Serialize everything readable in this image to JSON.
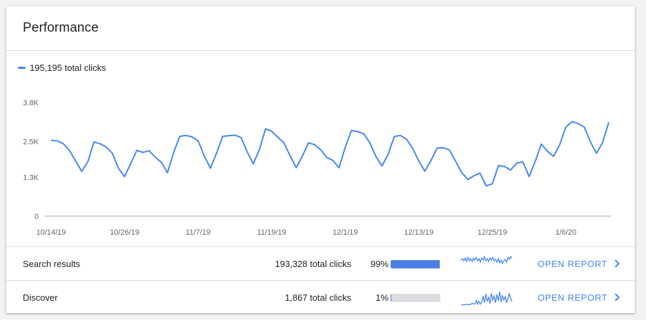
{
  "card": {
    "title": "Performance",
    "legend_label": "195,195 total clicks",
    "accent_color": "#4285f4"
  },
  "chart_data": {
    "type": "line",
    "title": "",
    "xlabel": "",
    "ylabel": "",
    "ylim": [
      0,
      3800
    ],
    "y_ticks": [
      "3.8K",
      "2.5K",
      "1.3K",
      "0"
    ],
    "y_tick_values": [
      3800,
      2500,
      1300,
      0
    ],
    "x_tick_labels": [
      "10/14/19",
      "10/26/19",
      "11/7/19",
      "11/19/19",
      "12/1/19",
      "12/13/19",
      "12/25/19",
      "1/6/20"
    ],
    "grid": "horizontal-light",
    "series": [
      {
        "name": "total clicks",
        "color": "#4285f4",
        "values": [
          2530,
          2520,
          2420,
          2200,
          1850,
          1500,
          1820,
          2480,
          2420,
          2310,
          2100,
          1600,
          1320,
          1760,
          2200,
          2130,
          2190,
          1970,
          1800,
          1450,
          2130,
          2670,
          2700,
          2650,
          2520,
          2010,
          1600,
          2100,
          2670,
          2690,
          2710,
          2630,
          2150,
          1750,
          2230,
          2920,
          2840,
          2640,
          2450,
          2020,
          1620,
          2000,
          2450,
          2390,
          2220,
          1960,
          1860,
          1620,
          2300,
          2860,
          2830,
          2760,
          2460,
          2000,
          1680,
          2070,
          2660,
          2700,
          2570,
          2270,
          1850,
          1500,
          1860,
          2280,
          2290,
          2210,
          1840,
          1460,
          1220,
          1350,
          1440,
          1010,
          1080,
          1690,
          1660,
          1540,
          1780,
          1810,
          1320,
          1830,
          2410,
          2170,
          2000,
          2390,
          2970,
          3160,
          3100,
          2980,
          2490,
          2100,
          2460,
          3140
        ]
      }
    ]
  },
  "rows": [
    {
      "name": "Search results",
      "total": "193,328 total clicks",
      "percent_label": "99%",
      "share": 0.99,
      "button": "OPEN REPORT"
    },
    {
      "name": "Discover",
      "total": "1,867 total clicks",
      "percent_label": "1%",
      "share": 0.01,
      "button": "OPEN REPORT"
    }
  ]
}
